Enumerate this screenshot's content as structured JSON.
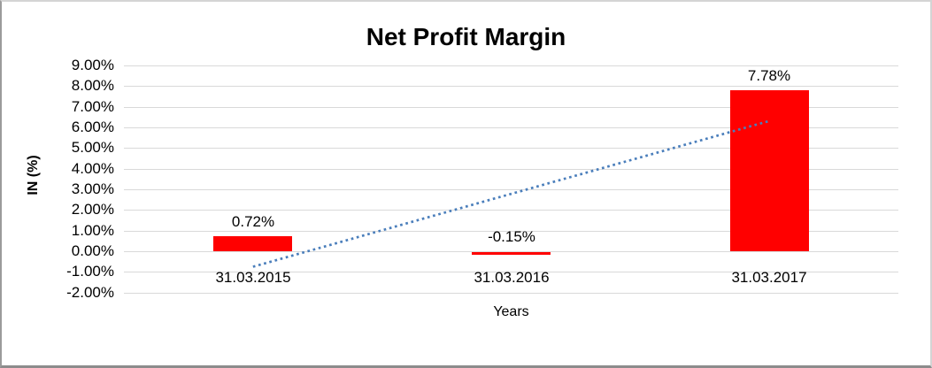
{
  "chart_data": {
    "type": "bar",
    "title": "Net Profit Margin",
    "xlabel": "Years",
    "ylabel": "IN (%)",
    "categories": [
      "31.03.2015",
      "31.03.2016",
      "31.03.2017"
    ],
    "values": [
      0.72,
      -0.15,
      7.78
    ],
    "data_labels": [
      "0.72%",
      "-0.15%",
      "7.78%"
    ],
    "ylim": [
      -2,
      9
    ],
    "ytick_step": 1,
    "ytick_labels": [
      "9.00%",
      "8.00%",
      "7.00%",
      "6.00%",
      "5.00%",
      "4.00%",
      "3.00%",
      "2.00%",
      "1.00%",
      "0.00%",
      "-1.00%",
      "-2.00%"
    ],
    "grid": true,
    "legend": "none",
    "bar_color": "#ff0000",
    "gridline_color": "#d9d9d9",
    "trendline": {
      "type": "linear",
      "style": "dotted",
      "color": "#4a7ebb",
      "start_category_index": 0,
      "end_category_index": 2,
      "start_value": -0.75,
      "end_value": 6.31
    }
  }
}
